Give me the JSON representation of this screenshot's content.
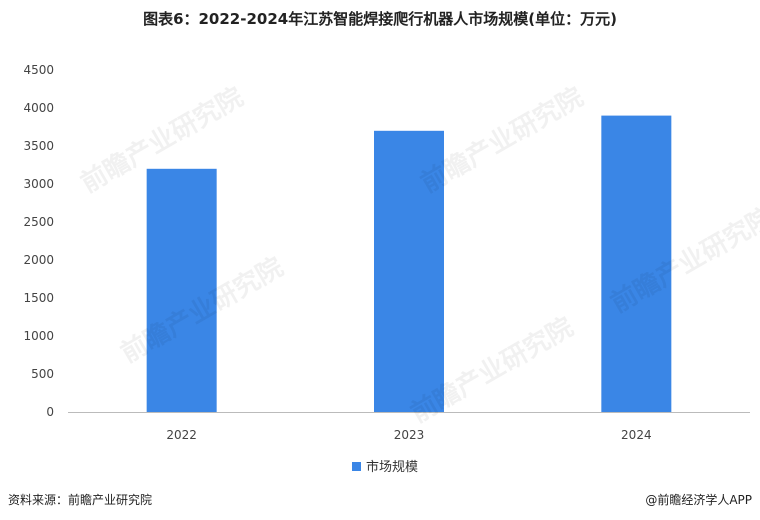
{
  "title": "图表6：2022-2024年江苏智能焊接爬行机器人市场规模(单位：万元)",
  "source": "资料来源：前瞻产业研究院",
  "brand": "@前瞻经济学人APP",
  "watermark": "前瞻产业研究院",
  "colors": {
    "bar": "#3A86E6",
    "axis": "#BBBBBB"
  },
  "chart_data": {
    "type": "bar",
    "categories": [
      "2022",
      "2023",
      "2024"
    ],
    "series": [
      {
        "name": "市场规模",
        "values": [
          3200,
          3700,
          3900
        ]
      }
    ],
    "yticks": [
      "0",
      "500",
      "1000",
      "1500",
      "2000",
      "2500",
      "3000",
      "3500",
      "4000",
      "4500"
    ],
    "ylim": [
      0,
      4500
    ],
    "grid": false,
    "legend": "bottom-center"
  }
}
